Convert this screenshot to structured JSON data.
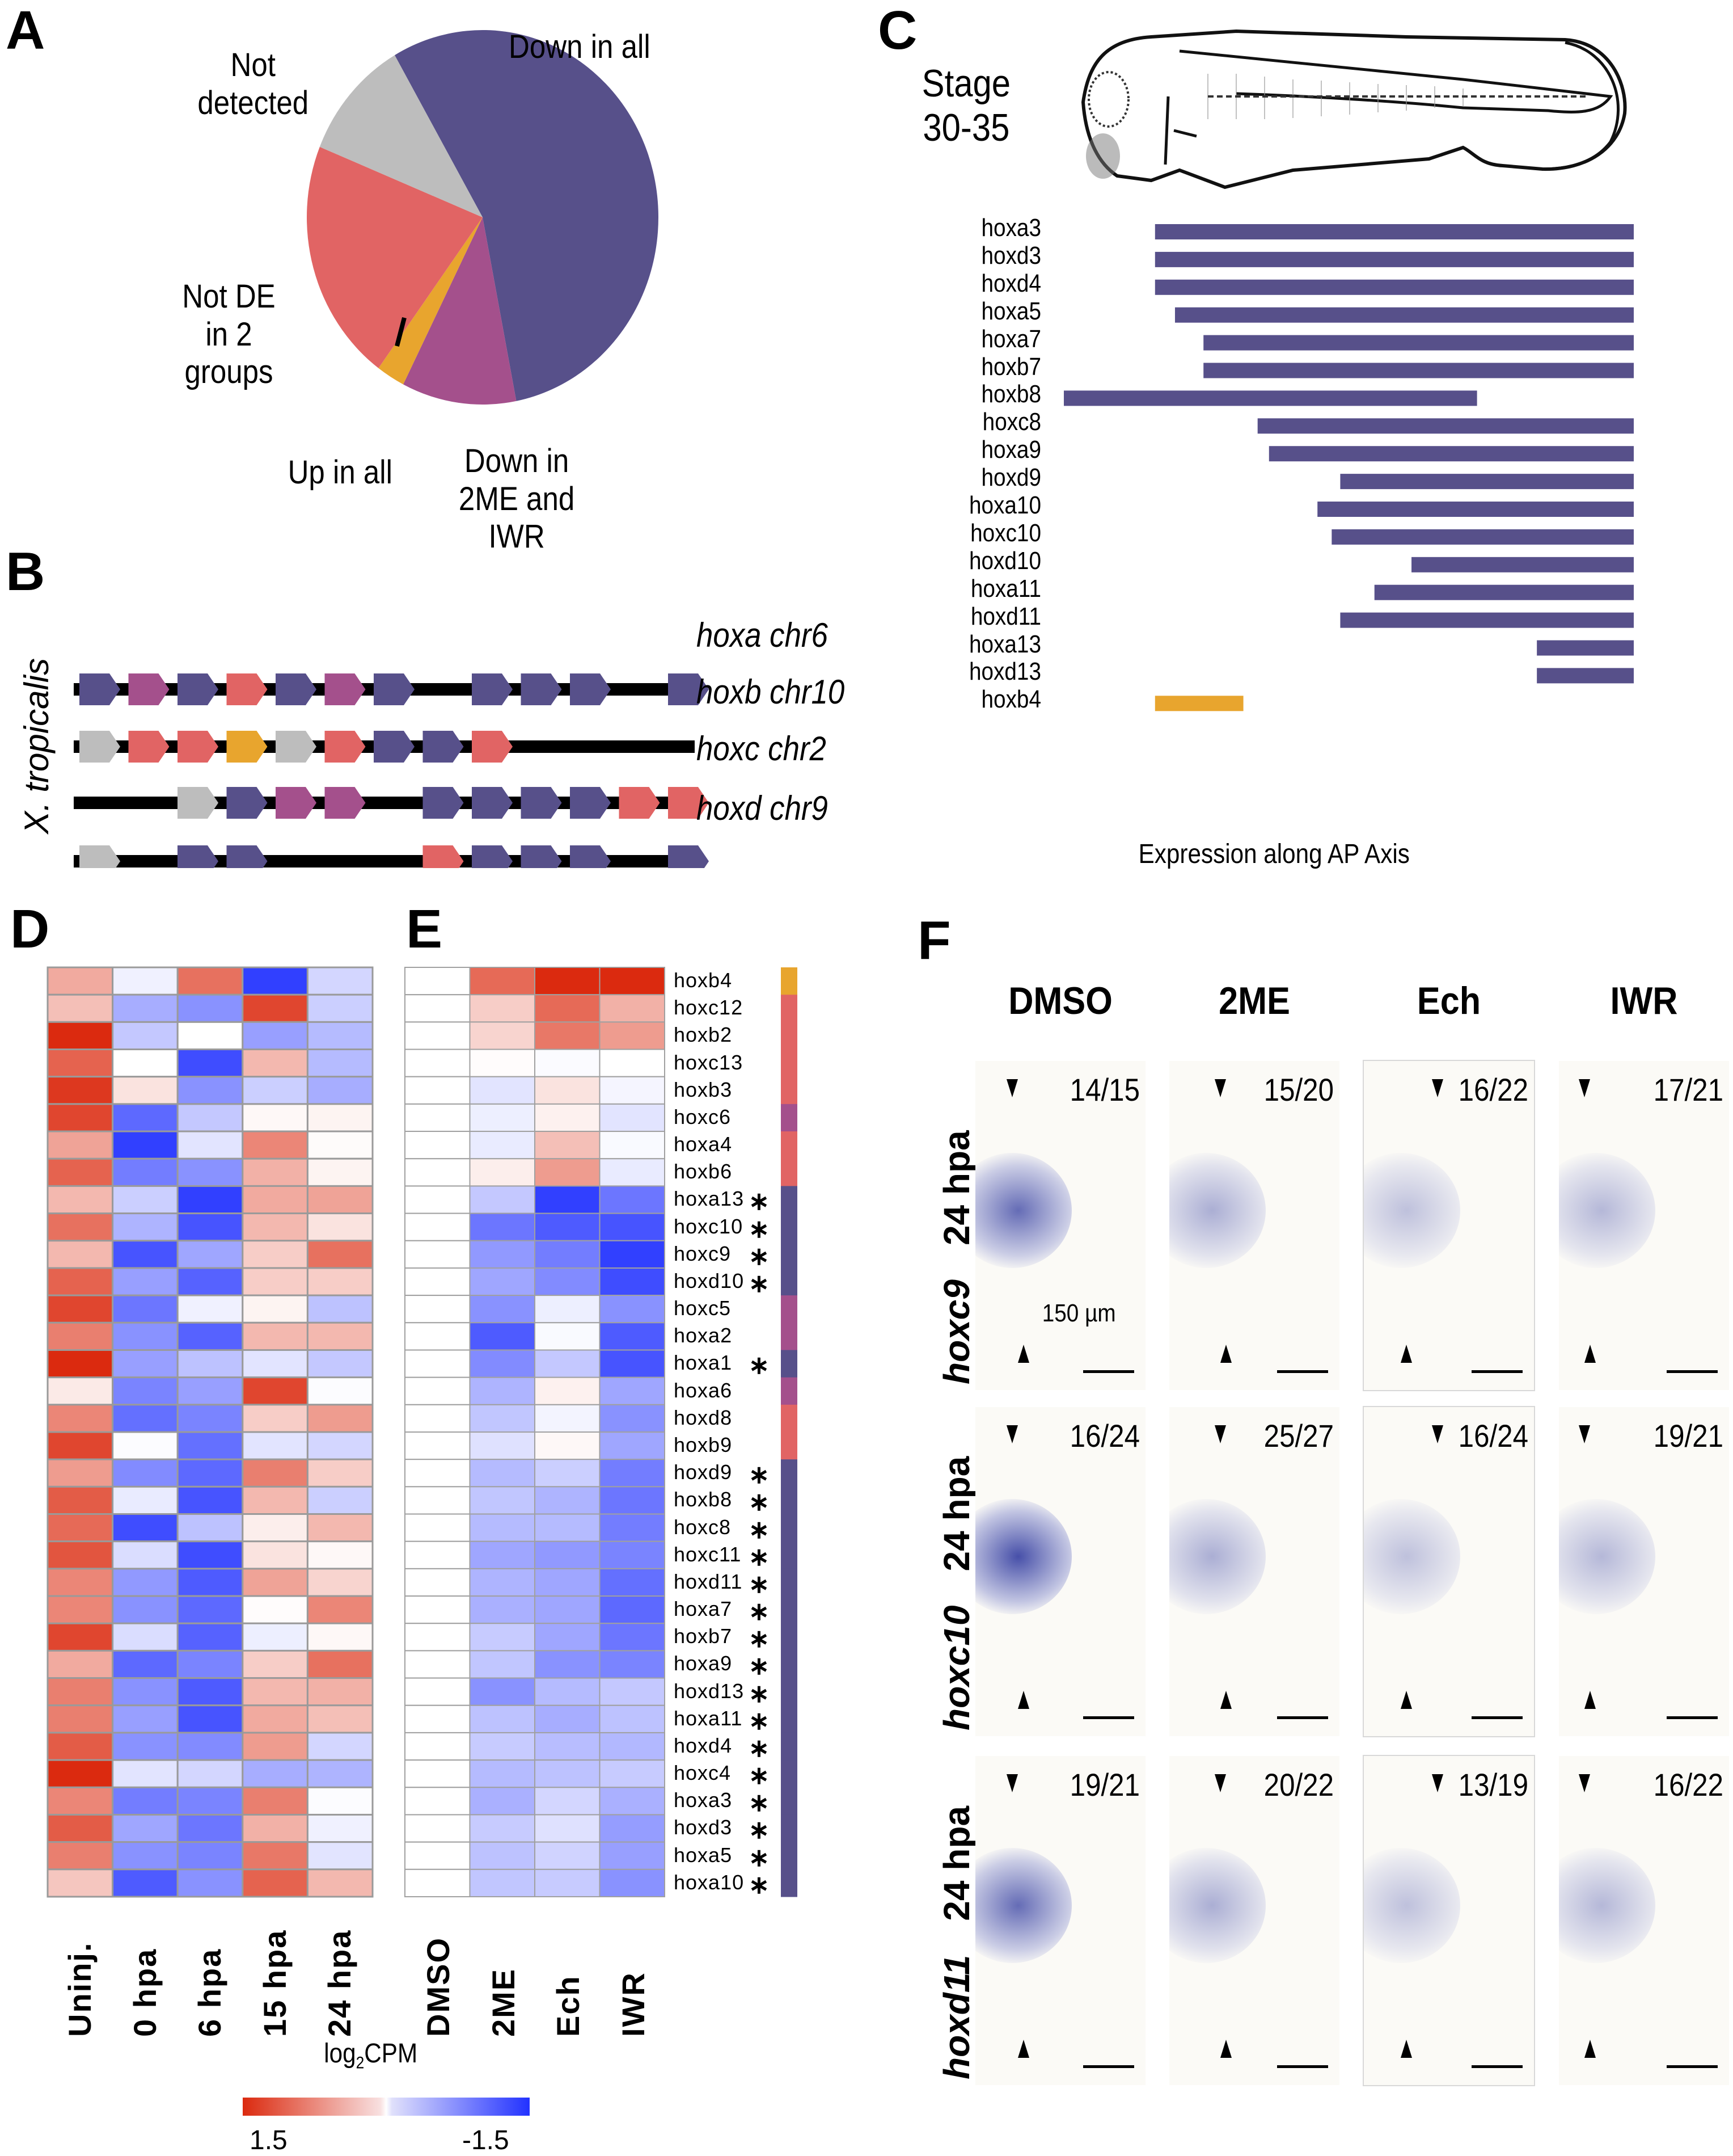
{
  "figure": {
    "panel_letters": [
      "A",
      "B",
      "C",
      "D",
      "E",
      "F"
    ]
  },
  "colors": {
    "down_in_all": "#57508a",
    "down_2me_iwr": "#a4508c",
    "up_in_all": "#e8a52e",
    "not_de_2_groups": "#e16464",
    "not_detected": "#bdbdbd",
    "heat_high": "#db2a0f",
    "heat_mid": "#ffffff",
    "heat_low": "#2232ff"
  },
  "chart_data": [
    {
      "panel": "A",
      "type": "pie",
      "title": "",
      "slices": [
        {
          "label": "Down in all",
          "value": 21,
          "color_key": "down_in_all"
        },
        {
          "label": "Down in 2ME and IWR",
          "value": 4,
          "color_key": "down_2me_iwr"
        },
        {
          "label": "Up in all",
          "value": 1,
          "color_key": "up_in_all"
        },
        {
          "label": "Not DE in 2 groups",
          "value": 8,
          "color_key": "not_de_2_groups"
        },
        {
          "label": "Not detected",
          "value": 4,
          "color_key": "not_detected"
        }
      ],
      "labels_display": {
        "down_in_all": "Down in all",
        "not_detected": [
          "Not",
          "detected"
        ],
        "not_de": [
          "Not DE",
          "in 2",
          "groups"
        ],
        "up_in_all": "Up in all",
        "down_2me_iwr": [
          "Down in",
          "2ME and",
          "IWR"
        ]
      }
    },
    {
      "panel": "B",
      "type": "table",
      "title": "X. tropicalis hox clusters",
      "species_label": "X. tropicalis",
      "slots": 13,
      "clusters": [
        {
          "name": "hoxa chr6",
          "genes": [
            "down_in_all",
            "down_2me_iwr",
            "down_in_all",
            "not_de_2_groups",
            "down_in_all",
            "down_2me_iwr",
            "down_in_all",
            null,
            "down_in_all",
            "down_in_all",
            "down_in_all",
            null,
            "down_in_all"
          ],
          "line_start": 0,
          "line_end": 13
        },
        {
          "name": "hoxb chr10",
          "genes": [
            "not_detected",
            "not_de_2_groups",
            "not_de_2_groups",
            "up_in_all",
            "not_detected",
            "not_de_2_groups",
            "down_in_all",
            "down_in_all",
            "not_de_2_groups",
            null,
            null,
            null,
            null
          ],
          "line_start": 0,
          "line_end": 13
        },
        {
          "name": "hoxc chr2",
          "genes": [
            null,
            null,
            "not_detected",
            "down_in_all",
            "down_2me_iwr",
            "down_2me_iwr",
            null,
            "down_in_all",
            "down_in_all",
            "down_in_all",
            "down_in_all",
            "not_de_2_groups",
            "not_de_2_groups"
          ],
          "line_start": 0,
          "line_end": 13
        },
        {
          "name": "hoxd chr9",
          "genes": [
            "not_detected",
            null,
            "down_in_all",
            "down_in_all",
            null,
            null,
            null,
            "not_de_2_groups",
            "down_in_all",
            "down_in_all",
            "down_in_all",
            null,
            "down_in_all"
          ],
          "line_start": 0,
          "line_end": 13
        }
      ]
    },
    {
      "panel": "C",
      "type": "bar",
      "title": "Stage 30-35",
      "stage_label": [
        "Stage",
        "30-35"
      ],
      "xlabel": "Expression along AP Axis",
      "xlim": [
        0,
        100
      ],
      "note": "Horizontal range bars; start/end as percent of AP axis (anterior=0, posterior=100).",
      "series": [
        {
          "gene": "hoxa3",
          "start": 16,
          "end": 100,
          "color_key": "down_in_all"
        },
        {
          "gene": "hoxd3",
          "start": 16,
          "end": 100,
          "color_key": "down_in_all"
        },
        {
          "gene": "hoxd4",
          "start": 16,
          "end": 100,
          "color_key": "down_in_all"
        },
        {
          "gene": "hoxa5",
          "start": 19.5,
          "end": 100,
          "color_key": "down_in_all"
        },
        {
          "gene": "hoxa7",
          "start": 24.5,
          "end": 100,
          "color_key": "down_in_all"
        },
        {
          "gene": "hoxb7",
          "start": 24.5,
          "end": 100,
          "color_key": "down_in_all"
        },
        {
          "gene": "hoxb8",
          "start": 0,
          "end": 72.5,
          "color_key": "down_in_all"
        },
        {
          "gene": "hoxc8",
          "start": 34,
          "end": 100,
          "color_key": "down_in_all"
        },
        {
          "gene": "hoxa9",
          "start": 36,
          "end": 100,
          "color_key": "down_in_all"
        },
        {
          "gene": "hoxd9",
          "start": 48.5,
          "end": 100,
          "color_key": "down_in_all"
        },
        {
          "gene": "hoxa10",
          "start": 44.5,
          "end": 100,
          "color_key": "down_in_all"
        },
        {
          "gene": "hoxc10",
          "start": 47,
          "end": 100,
          "color_key": "down_in_all"
        },
        {
          "gene": "hoxd10",
          "start": 61,
          "end": 100,
          "color_key": "down_in_all"
        },
        {
          "gene": "hoxa11",
          "start": 54.5,
          "end": 100,
          "color_key": "down_in_all"
        },
        {
          "gene": "hoxd11",
          "start": 48.5,
          "end": 100,
          "color_key": "down_in_all"
        },
        {
          "gene": "hoxa13",
          "start": 83,
          "end": 100,
          "color_key": "down_in_all"
        },
        {
          "gene": "hoxd13",
          "start": 83,
          "end": 100,
          "color_key": "down_in_all"
        },
        {
          "gene": "hoxb4",
          "start": 16,
          "end": 31.5,
          "color_key": "up_in_all"
        }
      ]
    },
    {
      "panel": "D",
      "type": "heatmap",
      "title": "",
      "columns": [
        "Uninj.",
        "0 hpa",
        "6 hpa",
        "15 hpa",
        "24 hpa"
      ],
      "rows": [
        "hoxb4",
        "hoxc12",
        "hoxb2",
        "hoxc13",
        "hoxb3",
        "hoxc6",
        "hoxa4",
        "hoxb6",
        "hoxa13",
        "hoxc10",
        "hoxc9",
        "hoxd10",
        "hoxc5",
        "hoxa2",
        "hoxa1",
        "hoxa6",
        "hoxd8",
        "hoxb9",
        "hoxd9",
        "hoxb8",
        "hoxc8",
        "hoxc11",
        "hoxd11",
        "hoxa7",
        "hoxb7",
        "hoxa9",
        "hoxd13",
        "hoxa11",
        "hoxd4",
        "hoxc4",
        "hoxa3",
        "hoxd3",
        "hoxa5",
        "hoxa10"
      ],
      "values_note": "Approximate: values estimated by eye from cell colour on a +1.5 (red) to -1.5 (blue) scale. Rows 1-12 read reliably; rows 13-34 could not be cleanly reconciled across overlapping crops and may be shifted by up to one row relative to the gene labels.",
      "values": [
        [
          0.6,
          -0.1,
          1.0,
          -1.4,
          -0.3
        ],
        [
          0.45,
          -0.6,
          -0.8,
          1.3,
          -0.35
        ],
        [
          1.5,
          -0.4,
          0.0,
          -0.7,
          -0.5
        ],
        [
          1.1,
          0.0,
          -1.3,
          0.5,
          -0.5
        ],
        [
          1.4,
          0.2,
          -0.8,
          -0.35,
          -0.6
        ],
        [
          1.3,
          -1.1,
          -0.4,
          0.05,
          0.08
        ],
        [
          0.65,
          -1.4,
          -0.2,
          0.85,
          0.03
        ],
        [
          1.1,
          -0.95,
          -0.8,
          0.55,
          0.08
        ],
        [
          0.5,
          -0.35,
          -1.4,
          0.6,
          0.65
        ],
        [
          1.0,
          -0.55,
          -1.25,
          0.5,
          0.2
        ],
        [
          0.5,
          -1.25,
          -0.65,
          0.35,
          1.0
        ],
        [
          1.1,
          -0.7,
          -1.15,
          0.35,
          0.35
        ],
        [
          1.3,
          -1.0,
          -0.1,
          0.08,
          -0.45
        ],
        [
          0.9,
          -0.8,
          -1.15,
          0.5,
          0.5
        ],
        [
          1.5,
          -0.7,
          -0.45,
          -0.2,
          -0.4
        ],
        [
          0.15,
          -0.9,
          -0.7,
          1.3,
          -0.02
        ],
        [
          0.85,
          -1.05,
          -0.9,
          0.35,
          0.7
        ],
        [
          1.3,
          -0.02,
          -1.05,
          -0.2,
          -0.3
        ],
        [
          0.7,
          -0.85,
          -1.1,
          0.9,
          0.35
        ],
        [
          1.15,
          -0.15,
          -1.25,
          0.5,
          -0.35
        ],
        [
          1.05,
          -1.3,
          -0.45,
          0.12,
          0.5
        ],
        [
          1.2,
          -0.25,
          -1.3,
          0.2,
          0.05
        ],
        [
          0.85,
          -0.75,
          -1.2,
          0.65,
          0.3
        ],
        [
          0.85,
          -0.8,
          -1.1,
          0.02,
          0.85
        ],
        [
          1.3,
          -0.25,
          -1.15,
          -0.12,
          0.05
        ],
        [
          0.6,
          -1.1,
          -0.9,
          0.35,
          1.0
        ],
        [
          0.9,
          -0.8,
          -1.2,
          0.5,
          0.55
        ],
        [
          0.9,
          -0.7,
          -1.25,
          0.6,
          0.45
        ],
        [
          1.15,
          -0.8,
          -0.85,
          0.7,
          -0.3
        ],
        [
          1.5,
          -0.2,
          -0.3,
          -0.6,
          -0.55
        ],
        [
          0.85,
          -0.95,
          -0.9,
          0.9,
          -0.02
        ],
        [
          1.15,
          -0.65,
          -1.0,
          0.55,
          -0.1
        ],
        [
          0.9,
          -0.8,
          -0.9,
          0.95,
          -0.2
        ],
        [
          0.4,
          -1.2,
          -0.8,
          1.1,
          0.5
        ]
      ],
      "colorbar": {
        "label": "log2CPM",
        "min_label": "1.5",
        "max_label": "-1.5",
        "range": [
          1.5,
          -1.5
        ]
      }
    },
    {
      "panel": "E",
      "type": "heatmap",
      "title": "",
      "columns": [
        "DMSO",
        "2ME",
        "Ech",
        "IWR"
      ],
      "rows": [
        {
          "gene": "hoxb4",
          "star": false,
          "cat": "up_in_all"
        },
        {
          "gene": "hoxc12",
          "star": false,
          "cat": "not_de_2_groups"
        },
        {
          "gene": "hoxb2",
          "star": false,
          "cat": "not_de_2_groups"
        },
        {
          "gene": "hoxc13",
          "star": false,
          "cat": "not_de_2_groups"
        },
        {
          "gene": "hoxb3",
          "star": false,
          "cat": "not_de_2_groups"
        },
        {
          "gene": "hoxc6",
          "star": false,
          "cat": "down_2me_iwr"
        },
        {
          "gene": "hoxa4",
          "star": false,
          "cat": "not_de_2_groups"
        },
        {
          "gene": "hoxb6",
          "star": false,
          "cat": "not_de_2_groups"
        },
        {
          "gene": "hoxa13",
          "star": true,
          "cat": "down_in_all"
        },
        {
          "gene": "hoxc10",
          "star": true,
          "cat": "down_in_all"
        },
        {
          "gene": "hoxc9",
          "star": true,
          "cat": "down_in_all"
        },
        {
          "gene": "hoxd10",
          "star": true,
          "cat": "down_in_all"
        },
        {
          "gene": "hoxc5",
          "star": false,
          "cat": "down_2me_iwr"
        },
        {
          "gene": "hoxa2",
          "star": false,
          "cat": "down_2me_iwr"
        },
        {
          "gene": "hoxa1",
          "star": true,
          "cat": "down_in_all"
        },
        {
          "gene": "hoxa6",
          "star": false,
          "cat": "down_2me_iwr"
        },
        {
          "gene": "hoxd8",
          "star": false,
          "cat": "not_de_2_groups"
        },
        {
          "gene": "hoxb9",
          "star": false,
          "cat": "not_de_2_groups"
        },
        {
          "gene": "hoxd9",
          "star": true,
          "cat": "down_in_all"
        },
        {
          "gene": "hoxb8",
          "star": true,
          "cat": "down_in_all"
        },
        {
          "gene": "hoxc8",
          "star": true,
          "cat": "down_in_all"
        },
        {
          "gene": "hoxc11",
          "star": true,
          "cat": "down_in_all"
        },
        {
          "gene": "hoxd11",
          "star": true,
          "cat": "down_in_all"
        },
        {
          "gene": "hoxa7",
          "star": true,
          "cat": "down_in_all"
        },
        {
          "gene": "hoxb7",
          "star": true,
          "cat": "down_in_all"
        },
        {
          "gene": "hoxa9",
          "star": true,
          "cat": "down_in_all"
        },
        {
          "gene": "hoxd13",
          "star": true,
          "cat": "down_in_all"
        },
        {
          "gene": "hoxa11",
          "star": true,
          "cat": "down_in_all"
        },
        {
          "gene": "hoxd4",
          "star": true,
          "cat": "down_in_all"
        },
        {
          "gene": "hoxc4",
          "star": true,
          "cat": "down_in_all"
        },
        {
          "gene": "hoxa3",
          "star": true,
          "cat": "down_in_all"
        },
        {
          "gene": "hoxd3",
          "star": true,
          "cat": "down_in_all"
        },
        {
          "gene": "hoxa5",
          "star": true,
          "cat": "down_in_all"
        },
        {
          "gene": "hoxa10",
          "star": true,
          "cat": "down_in_all"
        }
      ],
      "values_note": "Approximate: values estimated by eye from cell colour on a +1.5 (red) to -1.5 (blue) scale.",
      "values": [
        [
          0,
          1.05,
          1.5,
          1.5
        ],
        [
          0,
          0.35,
          1.05,
          0.55
        ],
        [
          0,
          0.3,
          0.95,
          0.7
        ],
        [
          0,
          0.02,
          -0.03,
          0
        ],
        [
          0,
          -0.2,
          0.2,
          -0.07
        ],
        [
          0,
          -0.12,
          0.1,
          -0.2
        ],
        [
          0,
          -0.15,
          0.45,
          -0.04
        ],
        [
          0,
          0.12,
          0.7,
          -0.15
        ],
        [
          0,
          -0.4,
          -1.4,
          -1.0
        ],
        [
          0,
          -1.0,
          -1.2,
          -1.25
        ],
        [
          0,
          -0.75,
          -0.95,
          -1.4
        ],
        [
          0,
          -0.65,
          -0.85,
          -1.3
        ],
        [
          0,
          -0.8,
          -0.12,
          -0.8
        ],
        [
          0,
          -1.2,
          -0.04,
          -1.2
        ],
        [
          0,
          -0.85,
          -0.4,
          -1.25
        ],
        [
          0,
          -0.55,
          0.1,
          -0.65
        ],
        [
          0,
          -0.42,
          -0.08,
          -0.8
        ],
        [
          0,
          -0.22,
          0.05,
          -0.65
        ],
        [
          0,
          -0.5,
          -0.35,
          -0.95
        ],
        [
          0,
          -0.42,
          -0.55,
          -1.0
        ],
        [
          0,
          -0.5,
          -0.5,
          -0.95
        ],
        [
          0,
          -0.65,
          -0.75,
          -0.9
        ],
        [
          0,
          -0.55,
          -0.65,
          -1.05
        ],
        [
          0,
          -0.58,
          -0.65,
          -1.1
        ],
        [
          0,
          -0.38,
          -0.65,
          -1.0
        ],
        [
          0,
          -0.42,
          -0.8,
          -0.9
        ],
        [
          0,
          -0.8,
          -0.5,
          -0.4
        ],
        [
          0,
          -0.45,
          -0.6,
          -0.45
        ],
        [
          0,
          -0.38,
          -0.48,
          -0.52
        ],
        [
          0,
          -0.5,
          -0.45,
          -0.38
        ],
        [
          0,
          -0.58,
          -0.3,
          -0.58
        ],
        [
          0,
          -0.38,
          -0.22,
          -0.72
        ],
        [
          0,
          -0.45,
          -0.32,
          -0.7
        ],
        [
          0,
          -0.42,
          -0.38,
          -0.8
        ]
      ]
    }
  ],
  "panel_c": {
    "stage_line1": "Stage",
    "stage_line2": "30-35",
    "xlabel": "Expression along AP Axis"
  },
  "panel_d": {
    "columns": [
      "Uninj.",
      "0 hpa",
      "6 hpa",
      "15 hpa",
      "24 hpa"
    ]
  },
  "panel_e": {
    "columns": [
      "DMSO",
      "2ME",
      "Ech",
      "IWR"
    ]
  },
  "colorbar": {
    "label_main": "log",
    "label_sub": "2",
    "label_tail": "CPM",
    "min_label": "1.5",
    "max_label": "-1.5"
  },
  "panel_f": {
    "columns": [
      "DMSO",
      "2ME",
      "Ech",
      "IWR"
    ],
    "rows": [
      {
        "stage": "24 hpa",
        "gene": "hoxc9",
        "fractions": [
          "14/15",
          "15/20",
          "16/22",
          "17/21"
        ]
      },
      {
        "stage": "24 hpa",
        "gene": "hoxc10",
        "fractions": [
          "16/24",
          "25/27",
          "16/24",
          "19/21"
        ]
      },
      {
        "stage": "24 hpa",
        "gene": "hoxd11",
        "fractions": [
          "19/21",
          "20/22",
          "13/19",
          "16/22"
        ]
      }
    ],
    "scale_bar_label": "150 µm"
  }
}
